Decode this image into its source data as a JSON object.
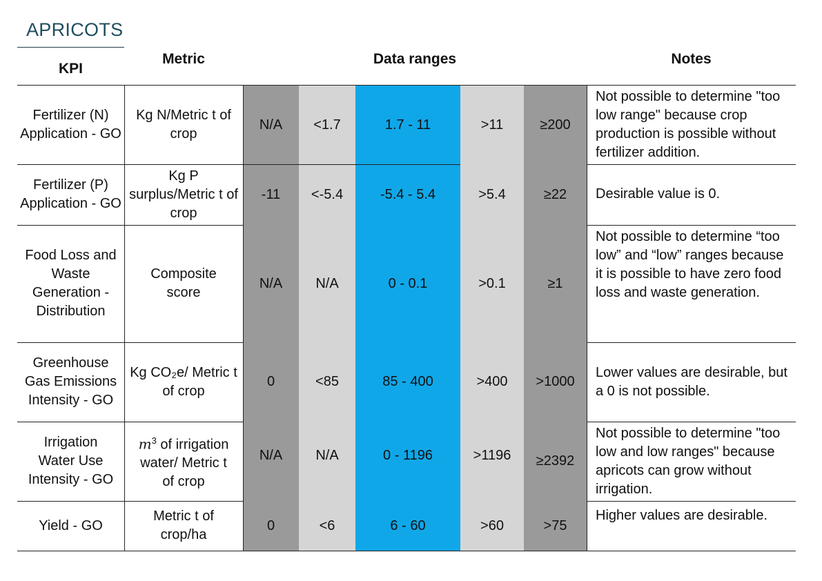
{
  "title": "APRICOTS",
  "headers": {
    "kpi": "KPI",
    "metric": "Metric",
    "ranges": "Data ranges",
    "notes": "Notes"
  },
  "rows": [
    {
      "kpi": "Fertilizer (N) Application - GO",
      "metric": "Kg N/Metric t of crop",
      "ranges": [
        "N/A",
        "<1.7",
        "1.7 - 11",
        ">11",
        "≥200"
      ],
      "notes": "Not possible to determine \"too low range\" because crop production is possible without fertilizer addition."
    },
    {
      "kpi": "Fertilizer (P) Application - GO",
      "metric": "Kg P surplus/Metric t of crop",
      "ranges": [
        "-11",
        "<-5.4",
        "-5.4 - 5.4",
        ">5.4",
        "≥22"
      ],
      "notes": "Desirable value is 0."
    },
    {
      "kpi": "Food Loss and Waste Generation - Distribution",
      "metric": "Composite score",
      "ranges": [
        "N/A",
        "N/A",
        "0 - 0.1",
        ">0.1",
        "≥1"
      ],
      "notes": "Not possible to determine “too low” and “low” ranges because it is possible to have zero food loss and waste generation."
    },
    {
      "kpi": "Greenhouse Gas Emissions Intensity - GO",
      "metric": "Kg CO₂e/ Metric t of crop",
      "ranges": [
        "0",
        "<85",
        "85 - 400",
        ">400",
        ">1000"
      ],
      "notes": "Lower values are desirable, but a 0 is not possible."
    },
    {
      "kpi": "Irrigation Water Use Intensity - GO",
      "metric_unit": "m",
      "metric_sup": "3",
      "metric_rest": " of irrigation water/ Metric t of crop",
      "ranges": [
        "N/A",
        "N/A",
        "0 - 1196",
        ">1196",
        "≥2392"
      ],
      "notes": "Not possible to determine \"too low and low ranges\" because apricots can grow without irrigation."
    },
    {
      "kpi": "Yield - GO",
      "metric": "Metric t of crop/ha",
      "ranges": [
        "0",
        "<6",
        "6 - 60",
        ">60",
        ">75"
      ],
      "notes": "Higher values are desirable."
    }
  ],
  "colors": {
    "title": "#1f4e5f",
    "dark_gray": "#9a9a9a",
    "light_gray": "#d5d5d5",
    "target_blue": "#10a7e8"
  }
}
